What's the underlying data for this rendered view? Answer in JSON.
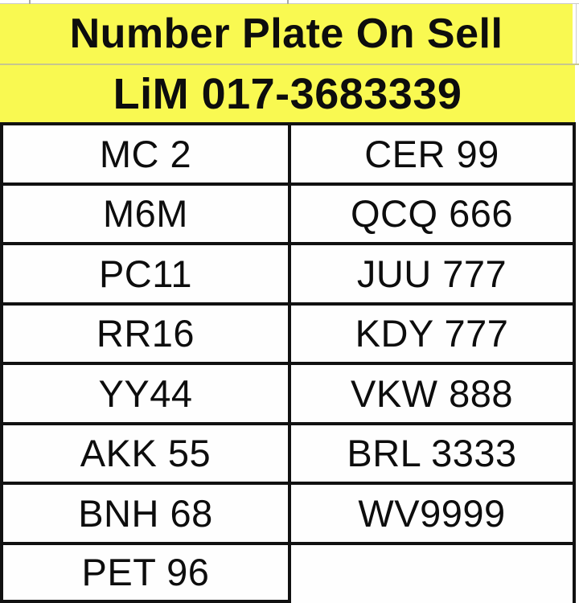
{
  "header": {
    "title": "Number Plate On Sell",
    "contact": "LiM 017-3683339"
  },
  "table": {
    "rows": [
      {
        "left": "MC 2",
        "right": "CER 99"
      },
      {
        "left": "M6M",
        "right": "QCQ 666"
      },
      {
        "left": "PC11",
        "right": "JUU 777"
      },
      {
        "left": "RR16",
        "right": "KDY 777"
      },
      {
        "left": "YY44",
        "right": "VKW 888"
      },
      {
        "left": "AKK 55",
        "right": "BRL 3333"
      },
      {
        "left": "BNH 68",
        "right": "WV9999"
      },
      {
        "left": "PET 96",
        "right": ""
      }
    ]
  },
  "colors": {
    "highlight_yellow": "#f9f951",
    "grid_black": "#111111",
    "grid_faint": "#c9c9c9"
  }
}
